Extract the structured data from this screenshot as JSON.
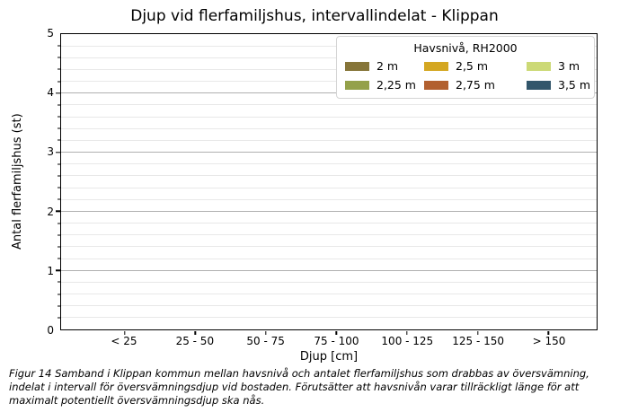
{
  "chart_data": {
    "type": "bar",
    "title": "Djup vid flerfamiljshus, intervallindelat - Klippan",
    "xlabel": "Djup [cm]",
    "ylabel": "Antal flerfamiljshus (st)",
    "categories": [
      "< 25",
      "25 - 50",
      "50 - 75",
      "75 - 100",
      "100 - 125",
      "125 - 150",
      "> 150"
    ],
    "series": [
      {
        "name": "2 m",
        "color": "#867539",
        "values": [
          0,
          0,
          0,
          0,
          0,
          0,
          0
        ]
      },
      {
        "name": "2,25 m",
        "color": "#94a14a",
        "values": [
          0,
          0,
          0,
          0,
          0,
          0,
          0
        ]
      },
      {
        "name": "2,5 m",
        "color": "#d4a722",
        "values": [
          0,
          0,
          0,
          0,
          0,
          0,
          0
        ]
      },
      {
        "name": "2,75 m",
        "color": "#b2602f",
        "values": [
          0,
          0,
          0,
          0,
          0,
          0,
          0
        ]
      },
      {
        "name": "3 m",
        "color": "#ccd976",
        "values": [
          0,
          0,
          0,
          0,
          0,
          0,
          0
        ]
      },
      {
        "name": "3,5 m",
        "color": "#32566b",
        "values": [
          0,
          0,
          0,
          0,
          0,
          0,
          0
        ]
      }
    ],
    "ylim": [
      0,
      5
    ],
    "y_major_ticks": [
      0,
      1,
      2,
      3,
      4,
      5
    ],
    "y_minor_step": 0.2,
    "grid": "horizontal major and minor, no vertical",
    "legend_title": "Havsnivå, RH2000",
    "legend_position": "upper right",
    "legend_layout": "2 rows x 3 columns, column-major order",
    "colors": {
      "grid_major": "#b0b0b0",
      "grid_minor": "#e8e8e8",
      "spine": "#000000",
      "legend_border": "#d4d4d4"
    }
  },
  "caption": {
    "lines": [
      "Figur 14 Samband i Klippan kommun mellan havsnivå och antalet flerfamiljshus som drabbas av översvämning,",
      "indelat i intervall för översvämningsdjup vid bostaden. Förutsätter att havsnivån varar tillräckligt länge för att",
      "maximalt potentiellt översvämningsdjup ska nås."
    ]
  }
}
